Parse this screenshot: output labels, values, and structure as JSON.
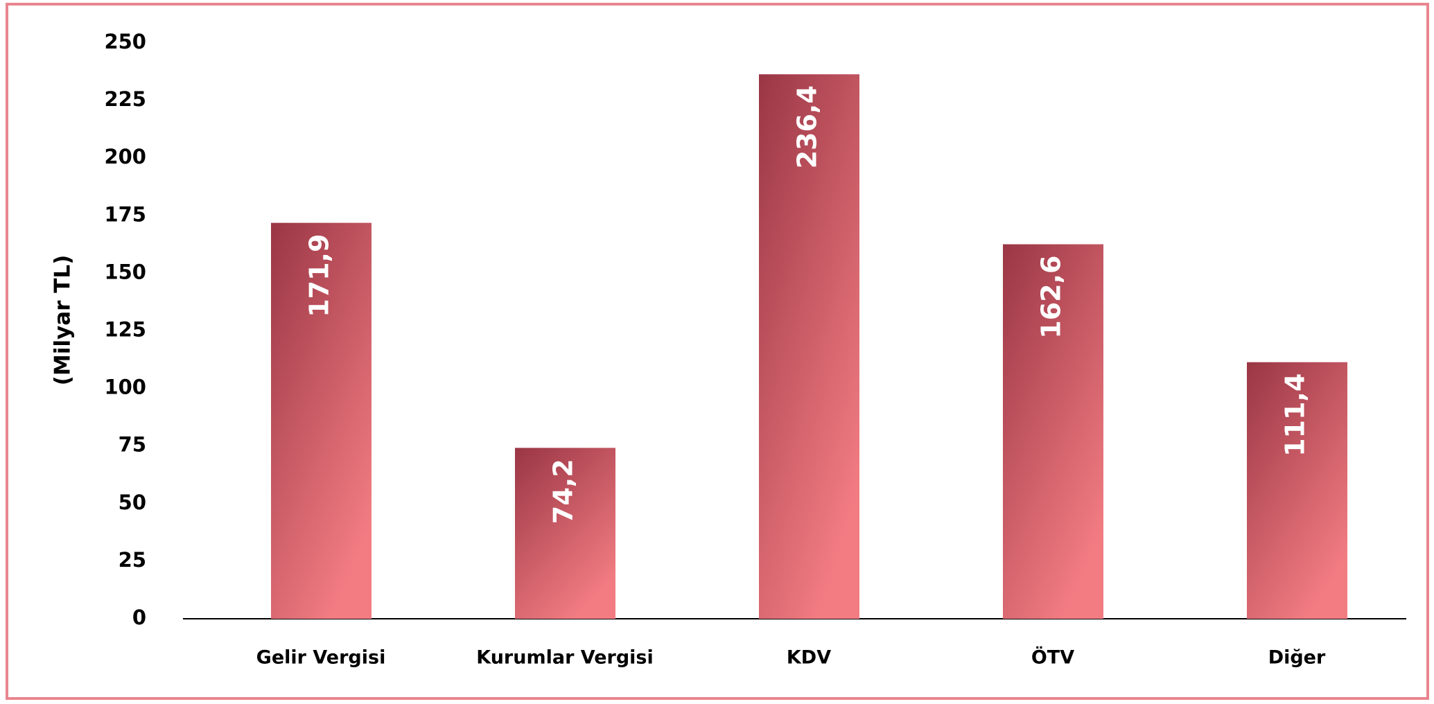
{
  "chart_data": {
    "type": "bar",
    "y_label": "(Milyar TL)",
    "categories": [
      "Gelir Vergisi",
      "Kurumlar Vergisi",
      "KDV",
      "ÖTV",
      "Diğer"
    ],
    "values": [
      171.9,
      74.2,
      236.4,
      162.6,
      111.4
    ],
    "value_labels": [
      "171,9",
      "74,2",
      "236,4",
      "162,6",
      "111,4"
    ],
    "gradient_colors": [
      "#9a3645",
      "#f27c82"
    ],
    "ylim": [
      0,
      250
    ],
    "yticks": [
      0,
      25,
      50,
      75,
      100,
      125,
      150,
      175,
      200,
      225,
      250
    ],
    "grid": false
  }
}
